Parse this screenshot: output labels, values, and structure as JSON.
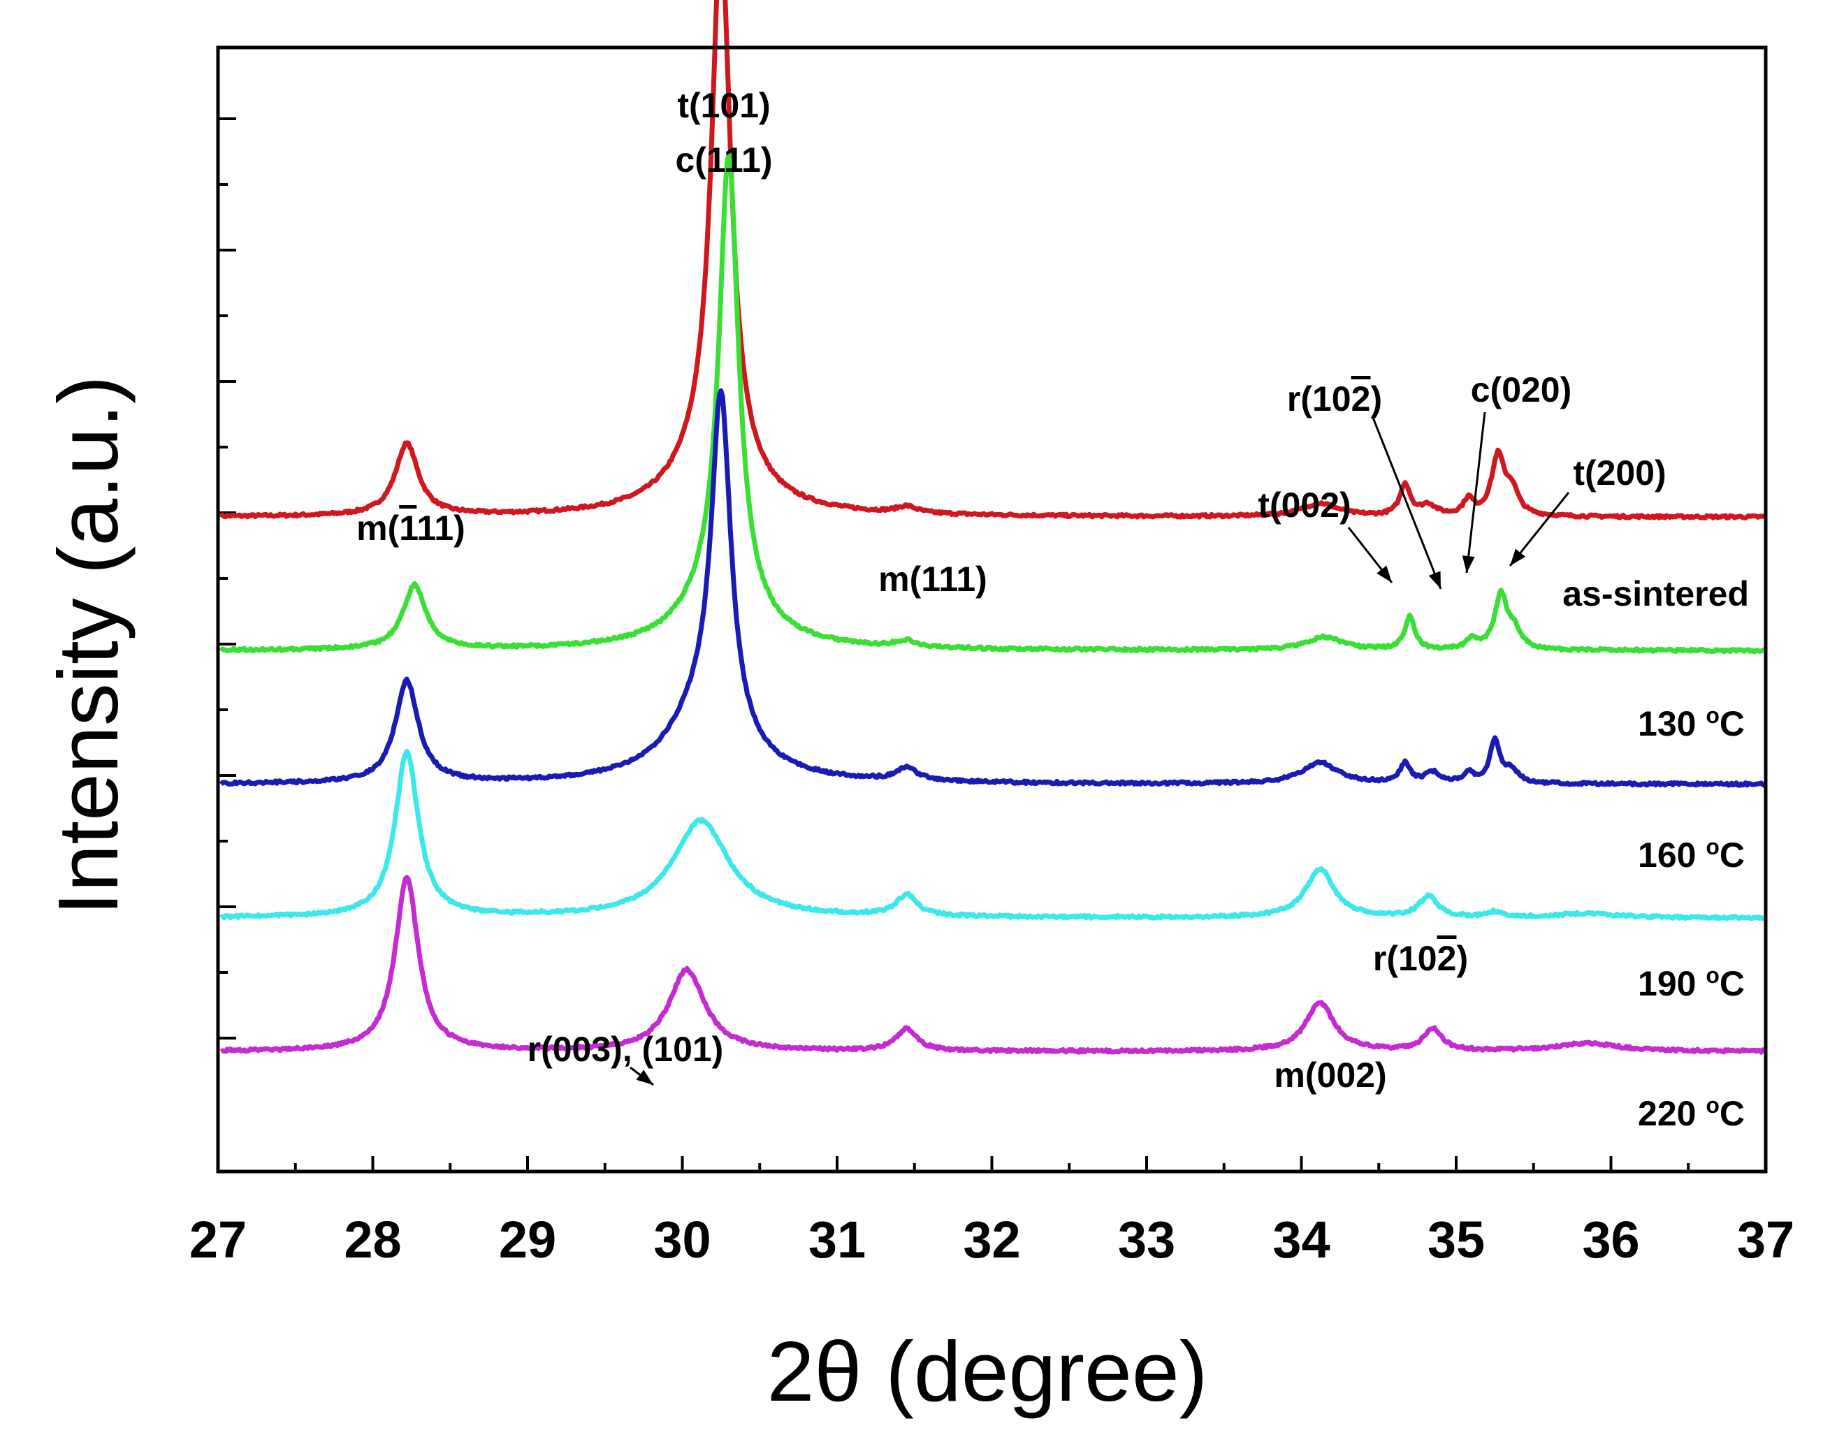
{
  "chart_data": {
    "type": "line",
    "xlabel": "2θ (degree)",
    "ylabel": "Intensity (a.u.)",
    "xlim": [
      27,
      37
    ],
    "x_ticks": [
      27,
      28,
      29,
      30,
      31,
      32,
      33,
      34,
      35,
      36,
      37
    ],
    "y_ticks_labeled": false,
    "series": [
      {
        "name": "as-sintered",
        "label_main": "as-sintered",
        "label_sup": "",
        "label_unit": "",
        "color": "#d0161f",
        "baseline": 4.9,
        "peaks": [
          [
            28.22,
            0.55,
            0.09
          ],
          [
            30.25,
            4.0,
            0.075
          ],
          [
            30.2,
            0.45,
            0.28
          ],
          [
            31.45,
            0.05,
            0.08
          ],
          [
            34.12,
            0.1,
            0.14
          ],
          [
            34.67,
            0.24,
            0.04
          ],
          [
            34.82,
            0.08,
            0.06
          ],
          [
            35.08,
            0.12,
            0.04
          ],
          [
            35.27,
            0.45,
            0.05
          ],
          [
            35.36,
            0.18,
            0.05
          ]
        ]
      },
      {
        "name": "130 °C",
        "label_main": "130 ",
        "label_sup": "o",
        "label_unit": "C",
        "color": "#3adf35",
        "baseline": 3.88,
        "peaks": [
          [
            28.27,
            0.49,
            0.09
          ],
          [
            30.3,
            3.4,
            0.075
          ],
          [
            30.25,
            0.4,
            0.28
          ],
          [
            31.45,
            0.05,
            0.08
          ],
          [
            34.15,
            0.1,
            0.14
          ],
          [
            34.7,
            0.25,
            0.04
          ],
          [
            35.1,
            0.08,
            0.04
          ],
          [
            35.29,
            0.42,
            0.05
          ],
          [
            35.38,
            0.12,
            0.05
          ]
        ]
      },
      {
        "name": "160 °C",
        "label_main": "160 ",
        "label_sup": "o",
        "label_unit": "C",
        "color": "#1a1ab4",
        "baseline": 2.86,
        "peaks": [
          [
            28.22,
            0.78,
            0.09
          ],
          [
            30.25,
            2.52,
            0.075
          ],
          [
            30.15,
            0.55,
            0.28
          ],
          [
            31.45,
            0.1,
            0.08
          ],
          [
            34.12,
            0.16,
            0.14
          ],
          [
            34.67,
            0.15,
            0.04
          ],
          [
            34.85,
            0.08,
            0.06
          ],
          [
            35.08,
            0.08,
            0.04
          ],
          [
            35.25,
            0.32,
            0.04
          ],
          [
            35.36,
            0.1,
            0.05
          ]
        ]
      },
      {
        "name": "190 °C",
        "label_main": "190 ",
        "label_sup": "o",
        "label_unit": "C",
        "color": "#3de8ea",
        "baseline": 1.84,
        "peaks": [
          [
            28.22,
            1.26,
            0.09
          ],
          [
            30.12,
            0.74,
            0.22
          ],
          [
            31.45,
            0.16,
            0.08
          ],
          [
            34.12,
            0.37,
            0.11
          ],
          [
            34.82,
            0.16,
            0.07
          ],
          [
            35.25,
            0.04,
            0.05
          ],
          [
            35.85,
            0.03,
            0.25
          ]
        ]
      },
      {
        "name": "220 °C",
        "label_main": "220 ",
        "label_sup": "o",
        "label_unit": "C",
        "color": "#c42bd0",
        "baseline": 0.82,
        "peaks": [
          [
            28.22,
            1.33,
            0.09
          ],
          [
            30.03,
            0.62,
            0.14
          ],
          [
            31.45,
            0.17,
            0.08
          ],
          [
            34.12,
            0.37,
            0.11
          ],
          [
            34.85,
            0.17,
            0.07
          ],
          [
            35.85,
            0.06,
            0.25
          ]
        ]
      }
    ],
    "annotations": [
      {
        "id": "m-bar111",
        "pre": "m(",
        "bar": "1",
        "post": "11)"
      },
      {
        "id": "t101",
        "pre": "t(101)",
        "bar": "",
        "post": ""
      },
      {
        "id": "c111",
        "pre": "c(111)",
        "bar": "",
        "post": ""
      },
      {
        "id": "m111",
        "pre": "m(111)",
        "bar": "",
        "post": ""
      },
      {
        "id": "t002",
        "pre": "t(002)",
        "bar": "",
        "post": ""
      },
      {
        "id": "r10bar2-top",
        "pre": "r(10",
        "bar": "2",
        "post": ")"
      },
      {
        "id": "c020",
        "pre": "c(020)",
        "bar": "",
        "post": ""
      },
      {
        "id": "t200",
        "pre": "t(200)",
        "bar": "",
        "post": ""
      },
      {
        "id": "r10bar2-low",
        "pre": "r(10",
        "bar": "2",
        "post": ")"
      },
      {
        "id": "r003-101",
        "pre": "r(003), (101)",
        "bar": "",
        "post": ""
      },
      {
        "id": "m002",
        "pre": "m(002)",
        "bar": "",
        "post": ""
      }
    ]
  }
}
